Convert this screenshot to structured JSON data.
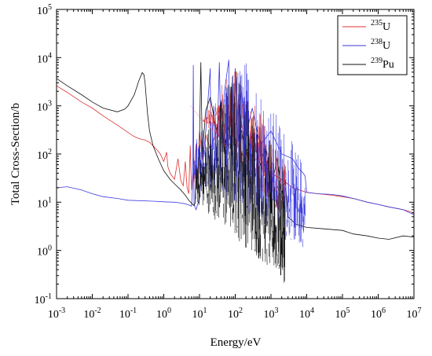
{
  "chart_data": {
    "type": "line",
    "title": "",
    "xlabel": "Energy/eV",
    "ylabel": "Total Cross-Section/b",
    "x_scale": "log",
    "y_scale": "log",
    "xlim": [
      0.001,
      10000000
    ],
    "ylim": [
      0.1,
      100000
    ],
    "grid": false,
    "legend_position": "top-right",
    "x_ticks": [
      {
        "base": "10",
        "exp": "-3",
        "value": 0.001
      },
      {
        "base": "10",
        "exp": "-2",
        "value": 0.01
      },
      {
        "base": "10",
        "exp": "-1",
        "value": 0.1
      },
      {
        "base": "10",
        "exp": "0",
        "value": 1
      },
      {
        "base": "10",
        "exp": "1",
        "value": 10
      },
      {
        "base": "10",
        "exp": "2",
        "value": 100
      },
      {
        "base": "10",
        "exp": "3",
        "value": 1000
      },
      {
        "base": "10",
        "exp": "4",
        "value": 10000
      },
      {
        "base": "10",
        "exp": "5",
        "value": 100000
      },
      {
        "base": "10",
        "exp": "6",
        "value": 1000000
      },
      {
        "base": "10",
        "exp": "7",
        "value": 10000000
      }
    ],
    "y_ticks": [
      {
        "base": "10",
        "exp": "-1",
        "value": 0.1
      },
      {
        "base": "10",
        "exp": "0",
        "value": 1
      },
      {
        "base": "10",
        "exp": "1",
        "value": 10
      },
      {
        "base": "10",
        "exp": "2",
        "value": 100
      },
      {
        "base": "10",
        "exp": "3",
        "value": 1000
      },
      {
        "base": "10",
        "exp": "4",
        "value": 10000
      },
      {
        "base": "10",
        "exp": "5",
        "value": 100000
      }
    ],
    "series": [
      {
        "name_mass": "235",
        "name_elem": "U",
        "color": "#e03030",
        "x": [
          0.001,
          0.002,
          0.005,
          0.01,
          0.02,
          0.05,
          0.1,
          0.15,
          0.2,
          0.25,
          0.3,
          0.4,
          0.6,
          0.8,
          1.0,
          1.2,
          1.3,
          1.5,
          2.0,
          2.5,
          3.0,
          3.5,
          4.0,
          4.5,
          5.0,
          5.5,
          6.0,
          6.5,
          7.0,
          8.0,
          9.0,
          10,
          12,
          15,
          20,
          30,
          50,
          100,
          200,
          500,
          1000,
          2000,
          4000,
          10000,
          20000,
          50000,
          100000,
          200000,
          500000,
          1000000,
          2000000,
          5000000,
          10000000
        ],
        "y": [
          2600,
          1900,
          1200,
          900,
          620,
          400,
          280,
          230,
          210,
          200,
          195,
          175,
          130,
          100,
          70,
          110,
          55,
          40,
          30,
          80,
          28,
          22,
          70,
          20,
          15,
          150,
          18,
          40,
          25,
          160,
          30,
          300,
          80,
          250,
          120,
          300,
          130,
          200,
          70,
          80,
          40,
          30,
          20,
          16,
          15,
          14,
          13,
          12,
          10,
          9,
          8,
          7,
          6
        ]
      },
      {
        "name_mass": "238",
        "name_elem": "U",
        "color": "#3a3adf",
        "x": [
          0.001,
          0.002,
          0.005,
          0.01,
          0.02,
          0.05,
          0.1,
          0.5,
          1.0,
          2.0,
          3.0,
          4.0,
          5.0,
          6.0,
          6.5,
          6.7,
          7.0,
          8.0,
          10,
          15,
          20,
          21,
          25,
          30,
          36,
          40,
          50,
          66,
          70,
          80,
          90,
          100,
          120,
          150,
          200,
          300,
          500,
          1000,
          2000,
          4000,
          6000,
          8000,
          9000,
          10000,
          20000,
          50000,
          100000,
          200000,
          500000,
          1000000,
          2000000,
          5000000,
          10000000
        ],
        "y": [
          20,
          21,
          18,
          15,
          13,
          12,
          11,
          10.5,
          10.2,
          10,
          9.6,
          9.3,
          8.8,
          8.3,
          30,
          7000,
          9,
          7,
          12,
          300,
          6000,
          20,
          1000,
          70,
          8000,
          150,
          2000,
          9000,
          200,
          3000,
          150,
          6000,
          500,
          2000,
          250,
          900,
          150,
          300,
          100,
          80,
          50,
          40,
          35,
          16,
          15,
          14.5,
          13.5,
          12,
          10,
          9,
          8,
          7,
          5.5
        ]
      },
      {
        "name_mass": "239",
        "name_elem": "Pu",
        "color": "#111111",
        "x": [
          0.001,
          0.002,
          0.005,
          0.01,
          0.02,
          0.05,
          0.08,
          0.1,
          0.15,
          0.2,
          0.25,
          0.28,
          0.3,
          0.32,
          0.35,
          0.4,
          0.5,
          0.7,
          1.0,
          1.5,
          2.0,
          3.0,
          4.0,
          5.0,
          6.0,
          7.0,
          7.5,
          7.8,
          8.0,
          8.5,
          9.0,
          10,
          10.9,
          12,
          15,
          20,
          30,
          40,
          50,
          60,
          80,
          100,
          150,
          200,
          300,
          500,
          700,
          1000,
          1500,
          2000,
          2500,
          3000,
          5000,
          10000,
          30000,
          100000,
          200000,
          500000,
          1000000,
          2000000,
          5000000,
          10000000
        ],
        "y": [
          3700,
          2600,
          1700,
          1200,
          900,
          750,
          850,
          1000,
          1700,
          3300,
          4900,
          4400,
          3000,
          1600,
          700,
          300,
          150,
          80,
          45,
          30,
          24,
          18,
          14,
          11,
          9.5,
          8.5,
          9.5,
          20,
          60,
          20,
          15,
          200,
          8000,
          100,
          800,
          1500,
          300,
          1200,
          100,
          300,
          600,
          150,
          300,
          100,
          250,
          60,
          150,
          20,
          80,
          15,
          30,
          5,
          3.5,
          3.0,
          2.8,
          2.6,
          2.2,
          2.0,
          1.8,
          1.7,
          2.0,
          1.9
        ]
      }
    ],
    "resonance_regions": [
      {
        "series": 0,
        "x_range": [
          5.5,
          2500
        ],
        "y_range_low": [
          4,
          1000
        ],
        "y_range_high": [
          40,
          8000
        ]
      },
      {
        "series": 1,
        "x_range": [
          6.6,
          9000
        ],
        "y_range_low": [
          1,
          30
        ],
        "y_range_high": [
          30,
          12000
        ]
      },
      {
        "series": 2,
        "x_range": [
          7.8,
          2500
        ],
        "y_range_low": [
          0.2,
          10
        ],
        "y_range_high": [
          20,
          8000
        ]
      }
    ]
  }
}
